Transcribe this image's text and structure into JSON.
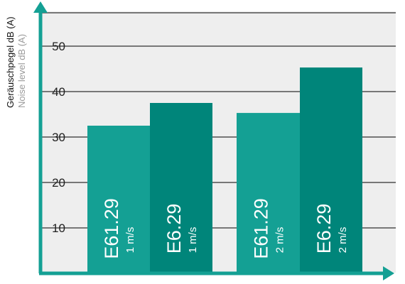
{
  "chart_data": {
    "type": "bar",
    "ylabel_de": "Geräuschpegel dB (A)",
    "ylabel_en": "Noise level dB (A)",
    "ylim": [
      0,
      60
    ],
    "yticks": [
      10,
      20,
      30,
      40,
      50
    ],
    "grid": true,
    "bars": [
      {
        "name": "E61.29",
        "sub": "1 m/s",
        "value": 32.5,
        "color": "#14a094"
      },
      {
        "name": "E6.29",
        "sub": "1 m/s",
        "value": 37.5,
        "color": "#00857a"
      },
      {
        "name": "E61.29",
        "sub": "2 m/s",
        "value": 35.3,
        "color": "#14a094"
      },
      {
        "name": "E6.29",
        "sub": "2 m/s",
        "value": 45.3,
        "color": "#00857a"
      }
    ],
    "colors": {
      "axis": "#14a094",
      "plot_bg": "#eeeeee",
      "grid": "#000000"
    }
  }
}
